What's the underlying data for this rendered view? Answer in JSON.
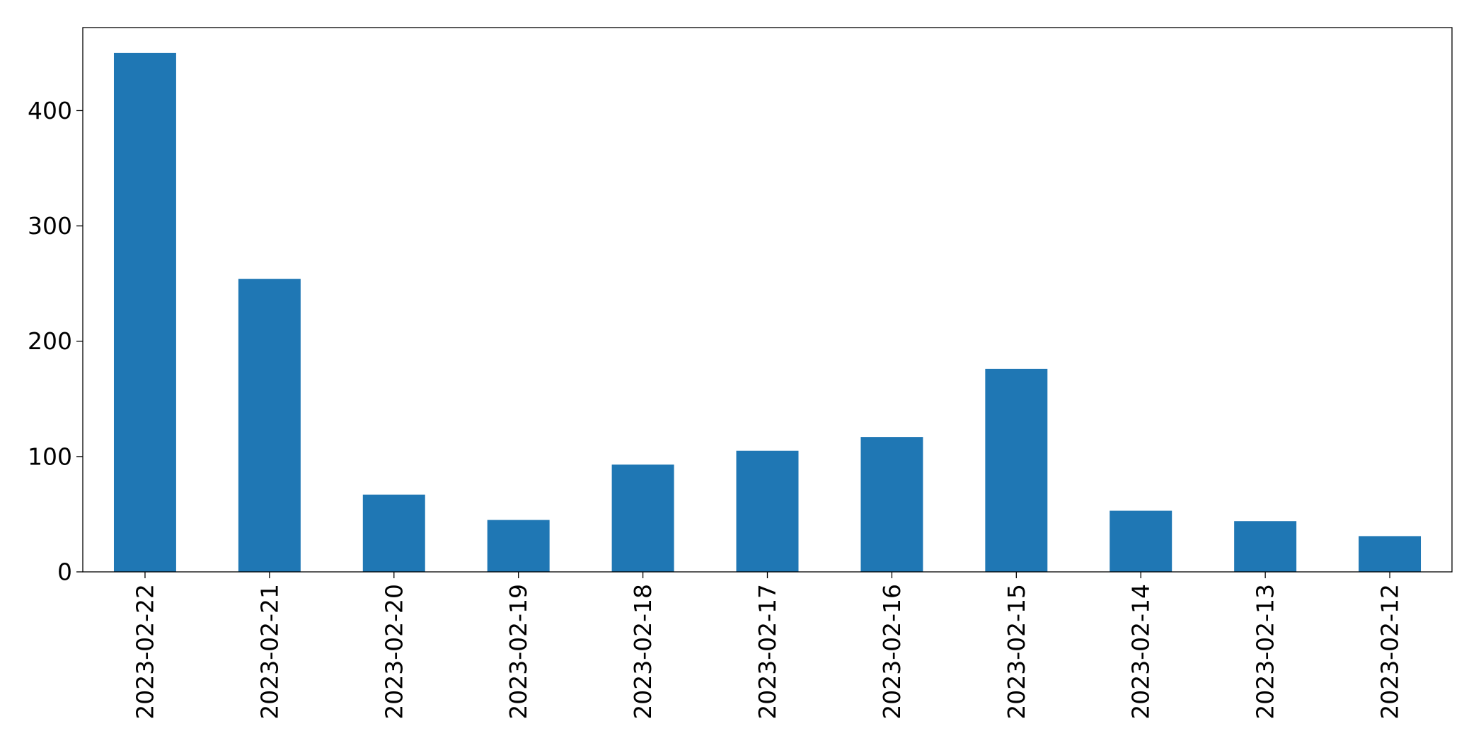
{
  "chart_data": {
    "type": "bar",
    "categories": [
      "2023-02-22",
      "2023-02-21",
      "2023-02-20",
      "2023-02-19",
      "2023-02-18",
      "2023-02-17",
      "2023-02-16",
      "2023-02-15",
      "2023-02-14",
      "2023-02-13",
      "2023-02-12"
    ],
    "values": [
      450,
      254,
      67,
      45,
      93,
      105,
      117,
      176,
      53,
      44,
      31
    ],
    "title": "",
    "xlabel": "",
    "ylabel": "",
    "ylim": [
      0,
      472
    ],
    "yticks": [
      0,
      100,
      200,
      300,
      400
    ],
    "grid": false,
    "legend": "none",
    "bar_color": "#1f77b4",
    "axis_color": "#000000"
  }
}
